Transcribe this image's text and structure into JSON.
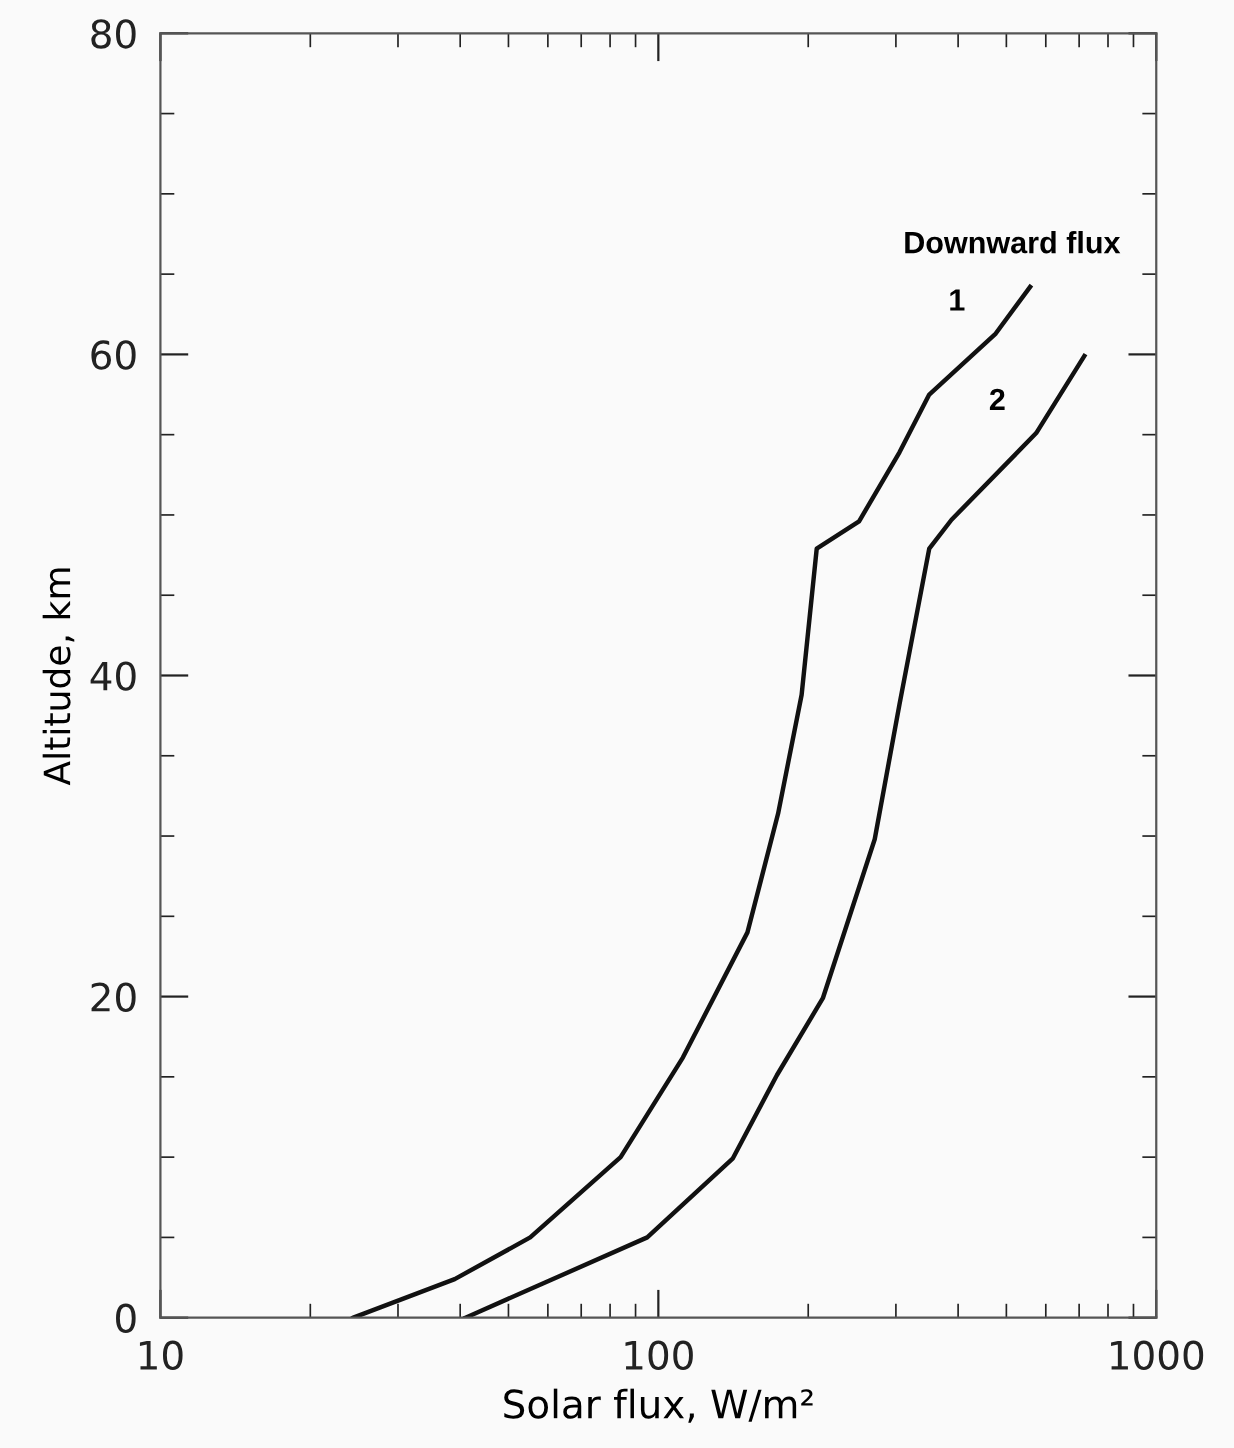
{
  "chart_data": {
    "type": "line",
    "xlabel": "Solar flux, W/m²",
    "ylabel": "Altitude, km",
    "annotations": [
      "Downward flux"
    ],
    "log": "x",
    "xlim": [
      10,
      1000
    ],
    "xticks": [
      10,
      100,
      1000
    ],
    "ylim": [
      0,
      80
    ],
    "yticks": [
      0,
      20,
      40,
      60,
      80
    ],
    "grid": false,
    "legend": false,
    "marker": "none",
    "line_style": "solid",
    "series": [
      {
        "name": "1",
        "color": "#111111",
        "x": [
          24.4,
          39,
          55.3,
          84,
          112,
          151,
          174,
          194,
          208,
          253,
          305,
          350,
          476,
          558
        ],
        "values": [
          0,
          2.4,
          5,
          10,
          16.2,
          24,
          31.4,
          38.8,
          47.9,
          49.6,
          53.9,
          57.5,
          61.3,
          64.2
        ]
      },
      {
        "name": "2",
        "color": "#111111",
        "x": [
          41,
          95,
          141,
          173,
          214,
          272,
          305,
          350,
          388,
          574,
          717
        ],
        "values": [
          0,
          5,
          9.9,
          15.1,
          19.9,
          29.8,
          38.2,
          47.9,
          49.7,
          55.1,
          59.9
        ]
      }
    ]
  }
}
